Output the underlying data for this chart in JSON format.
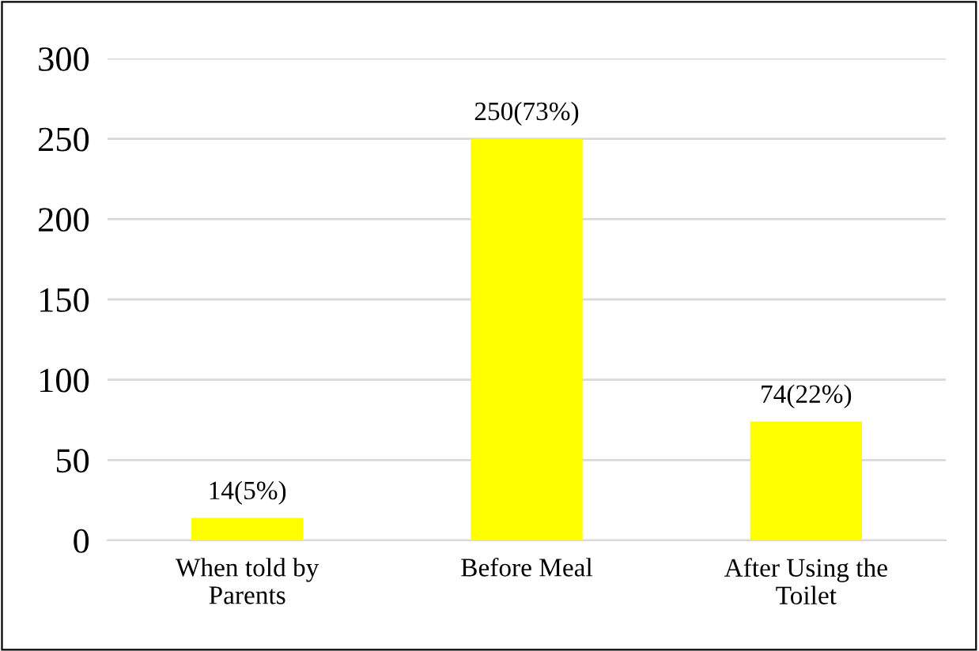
{
  "chart_data": {
    "type": "bar",
    "categories": [
      "When told by\nParents",
      "Before Meal",
      "After Using the\nToilet"
    ],
    "values": [
      14,
      250,
      74
    ],
    "value_labels": [
      "14(5%)",
      "250(73%)",
      "74(22%)"
    ],
    "color": "#ffff00",
    "ylim": [
      0,
      300
    ],
    "yticks": [
      0,
      50,
      100,
      150,
      200,
      250,
      300
    ],
    "grid": "y",
    "legend": false
  }
}
